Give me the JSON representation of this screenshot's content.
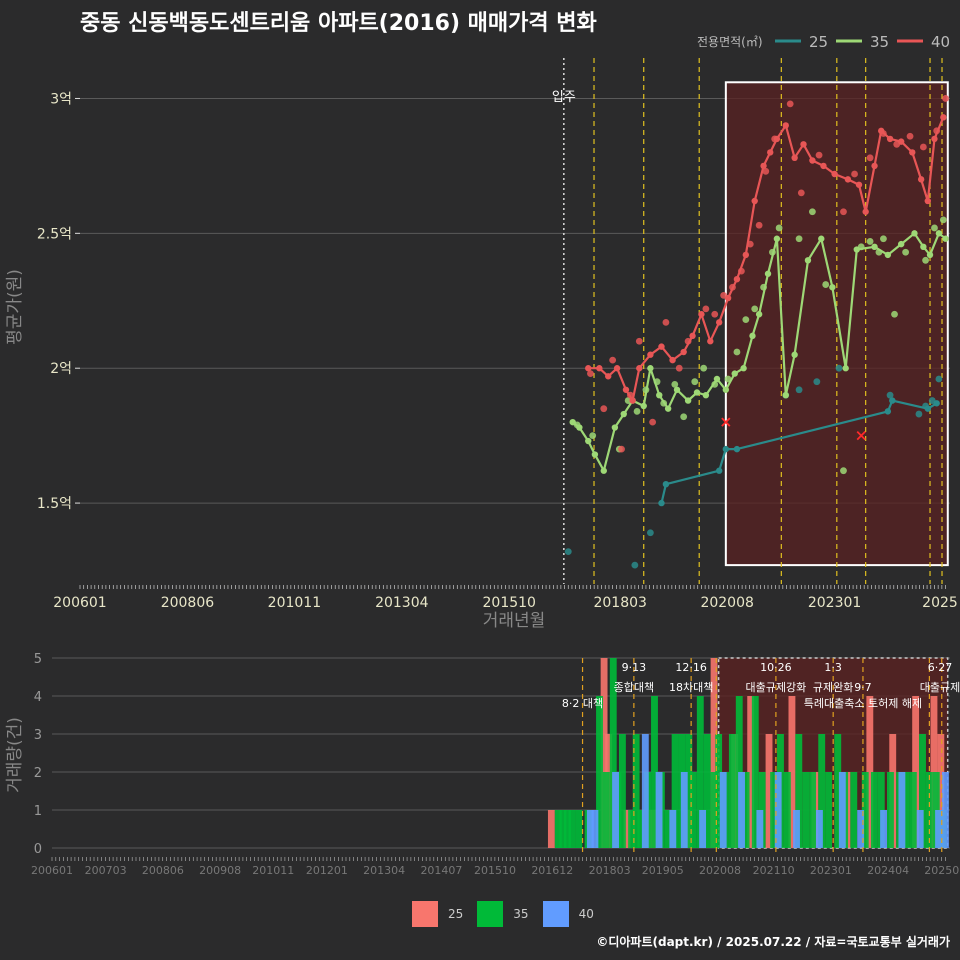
{
  "title": "중동 신동백동도센트리움 아파트(2016) 매매가격 변화",
  "footer": "©디아파트(dapt.kr) / 2025.07.22 / 자료=국토교통부 실거래가",
  "colors": {
    "background": "#2b2b2c",
    "grid": "#5a5a5a",
    "line25": "#2a8b8b",
    "line35": "#9ed876",
    "line40": "#e85656",
    "bar25": "#f8766d",
    "bar35": "#00ba38",
    "bar40": "#619cff",
    "policy": "#e0c020",
    "highlight_fill": "#5a2222",
    "highlight_stroke": "#ffffff"
  },
  "chart_data": [
    {
      "type": "line",
      "title": "중동 신동백동도센트리움 아파트(2016) 매매가격 변화",
      "xlabel": "거래년월",
      "ylabel": "평균가(원)",
      "xlim": [
        2006.0,
        2025.6
      ],
      "ylim": [
        1.2,
        3.15
      ],
      "y_ticks": [
        1.5,
        2.0,
        2.5,
        3.0
      ],
      "y_tick_labels": [
        "1.5억",
        "2억",
        "2.5억",
        "3억"
      ],
      "x_ticks": [
        2006.0,
        2008.42,
        2010.83,
        2013.25,
        2015.67,
        2018.17,
        2020.58,
        2023.0,
        2025.42
      ],
      "x_tick_labels": [
        "200601",
        "200806",
        "201011",
        "201304",
        "201510",
        "201803",
        "202008",
        "202301",
        "2025"
      ],
      "legend_title": "전용면적(㎡)",
      "movein": {
        "x": 2016.9,
        "label": "입주"
      },
      "policy_lines": [
        2017.58,
        2018.7,
        2019.95,
        2021.8,
        2023.05,
        2023.7,
        2025.15,
        2025.42
      ],
      "highlight_range": {
        "x": [
          2020.55,
          2025.55
        ],
        "y": [
          1.27,
          3.06
        ]
      },
      "series": [
        {
          "name": "25",
          "x": [
            2019.1,
            2019.2,
            2020.4,
            2020.55,
            2020.8,
            2024.2,
            2024.3,
            2025.1,
            2025.3
          ],
          "y": [
            1.5,
            1.57,
            1.62,
            1.7,
            1.7,
            1.84,
            1.88,
            1.85,
            1.87
          ],
          "points_x": [
            2017.0,
            2018.5,
            2018.85,
            2021.9,
            2022.2,
            2022.6,
            2023.1,
            2024.25,
            2024.9,
            2025.05,
            2025.2,
            2025.35
          ],
          "points_y": [
            1.32,
            1.27,
            1.39,
            1.9,
            1.92,
            1.95,
            2.0,
            1.9,
            1.83,
            1.86,
            1.88,
            1.96
          ]
        },
        {
          "name": "35",
          "x": [
            2017.1,
            2017.25,
            2017.45,
            2017.6,
            2017.8,
            2018.05,
            2018.25,
            2018.45,
            2018.7,
            2018.85,
            2019.05,
            2019.25,
            2019.45,
            2019.7,
            2019.9,
            2020.1,
            2020.35,
            2020.55,
            2020.75,
            2020.95,
            2021.15,
            2021.3,
            2021.5,
            2021.7,
            2021.9,
            2022.1,
            2022.4,
            2022.7,
            2022.95,
            2023.25,
            2023.5,
            2023.9,
            2024.2,
            2024.5,
            2024.8,
            2025.0,
            2025.15,
            2025.35,
            2025.5
          ],
          "y": [
            1.8,
            1.78,
            1.73,
            1.68,
            1.62,
            1.78,
            1.83,
            1.88,
            1.86,
            2.0,
            1.9,
            1.85,
            1.92,
            1.88,
            1.91,
            1.9,
            1.96,
            1.92,
            1.98,
            2.0,
            2.12,
            2.2,
            2.35,
            2.48,
            1.9,
            2.05,
            2.4,
            2.48,
            2.3,
            2.0,
            2.44,
            2.45,
            2.42,
            2.46,
            2.5,
            2.45,
            2.42,
            2.5,
            2.48
          ],
          "points_x": [
            2017.2,
            2017.55,
            2018.15,
            2018.35,
            2018.55,
            2018.75,
            2019.0,
            2019.15,
            2019.4,
            2019.6,
            2019.85,
            2020.05,
            2020.3,
            2020.6,
            2020.8,
            2021.0,
            2021.2,
            2021.4,
            2021.6,
            2021.75,
            2022.2,
            2022.5,
            2022.8,
            2023.2,
            2023.6,
            2023.8,
            2024.0,
            2024.1,
            2024.35,
            2024.6,
            2025.05,
            2025.25,
            2025.45
          ],
          "points_y": [
            1.79,
            1.75,
            1.7,
            1.88,
            1.84,
            1.92,
            1.95,
            1.87,
            1.94,
            1.82,
            1.95,
            2.0,
            1.94,
            1.96,
            2.06,
            2.18,
            2.22,
            2.3,
            2.43,
            2.52,
            2.48,
            2.58,
            2.31,
            1.62,
            2.45,
            2.47,
            2.43,
            2.48,
            2.2,
            2.43,
            2.4,
            2.52,
            2.55
          ]
        },
        {
          "name": "40",
          "x": [
            2017.45,
            2017.7,
            2017.9,
            2018.1,
            2018.3,
            2018.45,
            2018.6,
            2018.85,
            2019.1,
            2019.35,
            2019.6,
            2019.8,
            2020.0,
            2020.2,
            2020.4,
            2020.6,
            2020.8,
            2021.0,
            2021.2,
            2021.4,
            2021.55,
            2021.7,
            2021.9,
            2022.1,
            2022.3,
            2022.5,
            2022.75,
            2023.0,
            2023.3,
            2023.55,
            2023.7,
            2023.9,
            2024.05,
            2024.25,
            2024.5,
            2024.75,
            2024.95,
            2025.1,
            2025.25,
            2025.45
          ],
          "y": [
            2.0,
            2.0,
            1.97,
            2.0,
            1.92,
            1.88,
            2.0,
            2.05,
            2.08,
            2.03,
            2.06,
            2.12,
            2.2,
            2.1,
            2.17,
            2.26,
            2.33,
            2.42,
            2.62,
            2.75,
            2.8,
            2.85,
            2.9,
            2.78,
            2.83,
            2.77,
            2.75,
            2.72,
            2.7,
            2.68,
            2.58,
            2.75,
            2.88,
            2.85,
            2.84,
            2.8,
            2.7,
            2.62,
            2.85,
            2.93
          ],
          "points_x": [
            2017.5,
            2017.8,
            2018.0,
            2018.2,
            2018.4,
            2018.6,
            2018.9,
            2019.2,
            2019.5,
            2019.7,
            2020.1,
            2020.3,
            2020.5,
            2020.7,
            2020.9,
            2021.1,
            2021.3,
            2021.45,
            2021.65,
            2022.0,
            2022.25,
            2022.65,
            2023.2,
            2023.45,
            2023.8,
            2024.1,
            2024.4,
            2024.7,
            2025.0,
            2025.3,
            2025.5
          ],
          "points_y": [
            1.98,
            1.85,
            2.03,
            1.7,
            1.9,
            2.1,
            1.8,
            2.17,
            2.0,
            2.1,
            2.22,
            2.2,
            2.27,
            2.3,
            2.36,
            2.46,
            2.53,
            2.73,
            2.85,
            2.98,
            2.65,
            2.79,
            2.58,
            2.72,
            2.78,
            2.87,
            2.83,
            2.86,
            2.82,
            2.88,
            3.0
          ],
          "crosses_x": [
            2020.55,
            2023.6
          ],
          "crosses_y": [
            1.8,
            1.75
          ]
        }
      ]
    },
    {
      "type": "bar",
      "ylabel": "거래량(건)",
      "xlim": [
        2006.0,
        2025.6
      ],
      "ylim": [
        0,
        5
      ],
      "y_ticks": [
        0,
        1,
        2,
        3,
        4,
        5
      ],
      "y_tick_labels": [
        "0",
        "1",
        "2",
        "3",
        "4",
        "5"
      ],
      "x_ticks": [
        2006.0,
        2007.17,
        2008.42,
        2009.67,
        2010.83,
        2012.0,
        2013.25,
        2014.5,
        2015.67,
        2016.92,
        2018.17,
        2019.33,
        2020.58,
        2021.75,
        2023.0,
        2024.25,
        2025.42
      ],
      "x_tick_labels": [
        "200601",
        "200703",
        "200806",
        "200908",
        "201011",
        "201201",
        "201304",
        "201407",
        "201510",
        "201612",
        "201803",
        "201905",
        "202008",
        "202110",
        "202301",
        "202404",
        "20250"
      ],
      "policy_lines": [
        2017.58,
        2018.7,
        2019.95,
        2020.5,
        2021.8,
        2023.05,
        2023.7,
        2025.15,
        2025.42
      ],
      "policy_labels": [
        {
          "x": 2017.58,
          "row": 2,
          "text": "8·2 대책"
        },
        {
          "x": 2018.7,
          "row": 0,
          "text": "9·13"
        },
        {
          "x": 2018.7,
          "row": 1,
          "text": "종합대책"
        },
        {
          "x": 2019.95,
          "row": 0,
          "text": "12·16"
        },
        {
          "x": 2019.95,
          "row": 1,
          "text": "18차대책"
        },
        {
          "x": 2021.8,
          "row": 0,
          "text": "10·26"
        },
        {
          "x": 2021.8,
          "row": 1,
          "text": "대출규제강화"
        },
        {
          "x": 2023.05,
          "row": 0,
          "text": "1·3"
        },
        {
          "x": 2023.05,
          "row": 1,
          "text": "규제완화"
        },
        {
          "x": 2023.7,
          "row": 1,
          "text": "9·7"
        },
        {
          "x": 2023.7,
          "row": 2,
          "text": "특례대출축소 토허제 해제"
        },
        {
          "x": 2025.42,
          "row": 0,
          "text": "6·27"
        },
        {
          "x": 2025.42,
          "row": 1,
          "text": "대출규제"
        }
      ],
      "highlight_range": {
        "x": [
          2020.55,
          2025.55
        ],
        "y": [
          0,
          5
        ]
      },
      "bar_width_months": 1,
      "series": [
        {
          "name": "25",
          "x": [
            2016.9,
            2018.05,
            2018.15,
            2018.55,
            2019.1,
            2019.85,
            2020.45,
            2020.9,
            2021.25,
            2021.65,
            2022.15,
            2022.65,
            2023.35,
            2023.85,
            2024.35,
            2024.85,
            2025.25,
            2025.4
          ],
          "values": [
            1,
            5,
            3,
            1,
            1,
            1,
            5,
            3,
            4,
            3,
            4,
            2,
            2,
            4,
            3,
            4,
            4,
            3
          ]
        },
        {
          "name": "35",
          "x": [
            2017.05,
            2017.15,
            2017.25,
            2017.35,
            2017.5,
            2017.7,
            2017.95,
            2018.1,
            2018.25,
            2018.35,
            2018.45,
            2018.65,
            2018.75,
            2018.85,
            2019.0,
            2019.15,
            2019.3,
            2019.45,
            2019.6,
            2019.75,
            2019.9,
            2020.0,
            2020.15,
            2020.3,
            2020.45,
            2020.55,
            2020.7,
            2020.85,
            2021.0,
            2021.15,
            2021.35,
            2021.5,
            2021.75,
            2021.9,
            2022.05,
            2022.3,
            2022.45,
            2022.6,
            2022.8,
            2022.95,
            2023.15,
            2023.3,
            2023.5,
            2023.75,
            2023.95,
            2024.1,
            2024.3,
            2024.5,
            2024.65,
            2024.8,
            2025.0,
            2025.15,
            2025.3,
            2025.45
          ],
          "values": [
            1,
            1,
            1,
            1,
            1,
            1,
            4,
            2,
            5,
            2,
            3,
            1,
            3,
            1,
            2,
            4,
            2,
            1,
            3,
            3,
            3,
            2,
            4,
            3,
            2,
            3,
            2,
            3,
            4,
            2,
            4,
            2,
            2,
            3,
            2,
            3,
            2,
            2,
            3,
            2,
            3,
            2,
            2,
            2,
            2,
            2,
            2,
            2,
            2,
            2,
            3,
            2,
            2,
            1
          ]
        },
        {
          "name": "40",
          "x": [
            2017.75,
            2017.85,
            2018.3,
            2018.95,
            2019.25,
            2019.55,
            2019.8,
            2020.2,
            2020.65,
            2021.05,
            2021.45,
            2021.85,
            2022.25,
            2022.75,
            2023.25,
            2023.65,
            2024.15,
            2024.55,
            2024.95,
            2025.35,
            2025.5
          ],
          "values": [
            1,
            1,
            2,
            3,
            2,
            1,
            2,
            1,
            2,
            2,
            1,
            2,
            1,
            1,
            2,
            1,
            1,
            2,
            1,
            1,
            2
          ]
        }
      ]
    }
  ]
}
